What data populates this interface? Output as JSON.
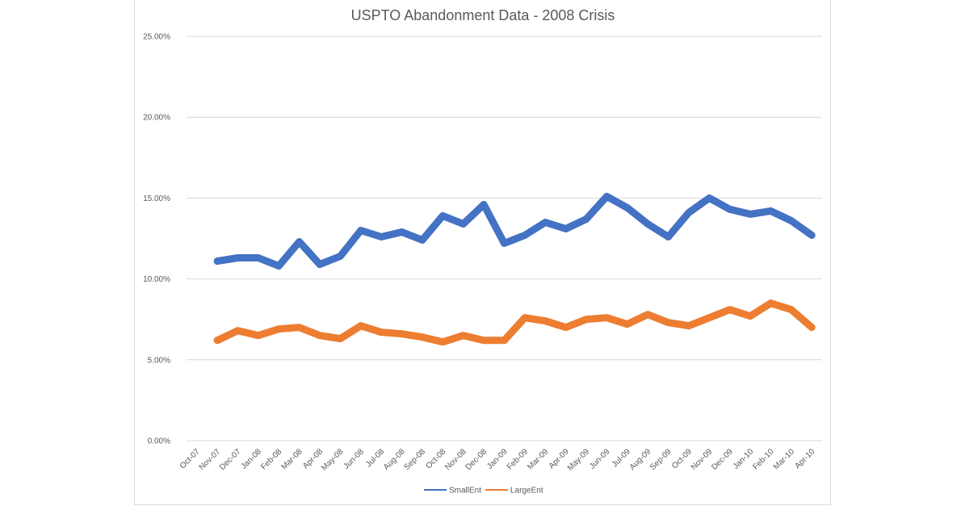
{
  "chart_data": {
    "type": "line",
    "title": "USPTO Abandonment Data - 2008 Crisis",
    "xlabel": "",
    "ylabel": "",
    "ylim": [
      0,
      25
    ],
    "y_ticks": [
      "0.00%",
      "5.00%",
      "10.00%",
      "15.00%",
      "20.00%",
      "25.00%"
    ],
    "grid": true,
    "legend_position": "bottom",
    "categories": [
      "Oct-07",
      "Nov-07",
      "Dec-07",
      "Jan-08",
      "Feb-08",
      "Mar-08",
      "Apr-08",
      "May-08",
      "Jun-08",
      "Jul-08",
      "Aug-08",
      "Sep-08",
      "Oct-08",
      "Nov-08",
      "Dec-08",
      "Jan-09",
      "Feb-09",
      "Mar-09",
      "Apr-09",
      "May-09",
      "Jun-09",
      "Jul-09",
      "Aug-09",
      "Sep-09",
      "Oct-09",
      "Nov-09",
      "Dec-09",
      "Jan-10",
      "Feb-10",
      "Mar-10",
      "Apr-10"
    ],
    "series": [
      {
        "name": "SmallEnt",
        "color": "#4472c4",
        "values": [
          null,
          11.1,
          11.3,
          11.3,
          10.8,
          12.3,
          10.9,
          11.4,
          13.0,
          12.6,
          12.9,
          12.4,
          13.9,
          13.4,
          14.6,
          12.2,
          12.7,
          13.5,
          13.1,
          13.7,
          15.1,
          14.4,
          13.4,
          12.6,
          14.1,
          15.0,
          14.3,
          14.0,
          14.2,
          13.6,
          12.7
        ]
      },
      {
        "name": "LargeEnt",
        "color": "#ed7d31",
        "values": [
          null,
          6.2,
          6.8,
          6.5,
          6.9,
          7.0,
          6.5,
          6.3,
          7.1,
          6.7,
          6.6,
          6.4,
          6.1,
          6.5,
          6.2,
          6.2,
          7.6,
          7.4,
          7.0,
          7.5,
          7.6,
          7.2,
          7.8,
          7.3,
          7.1,
          7.6,
          8.1,
          7.7,
          8.5,
          8.1,
          7.0
        ]
      }
    ]
  }
}
